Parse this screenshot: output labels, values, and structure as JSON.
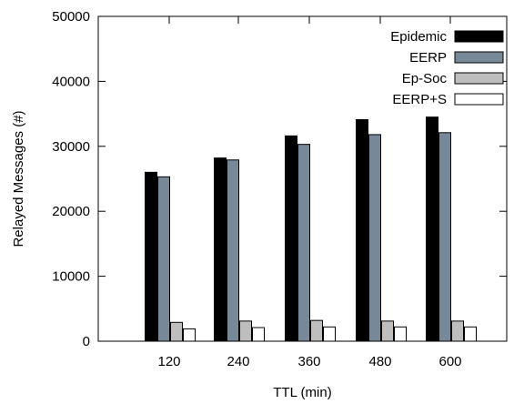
{
  "chart_data": {
    "type": "bar",
    "title": "",
    "xlabel": "TTL (min)",
    "ylabel": "Relayed Messages (#)",
    "categories": [
      "120",
      "240",
      "360",
      "480",
      "600"
    ],
    "ylim": [
      0,
      50000
    ],
    "yticks": [
      0,
      10000,
      20000,
      30000,
      40000,
      50000
    ],
    "grid": false,
    "legend_position": "top-right",
    "series": [
      {
        "name": "Epidemic",
        "color": "#000000",
        "values": [
          26000,
          28200,
          31600,
          34100,
          34500
        ]
      },
      {
        "name": "EERP",
        "color": "#778899",
        "values": [
          25300,
          27900,
          30300,
          31800,
          32100
        ]
      },
      {
        "name": "Ep-Soc",
        "color": "#bebebe",
        "values": [
          2900,
          3100,
          3200,
          3100,
          3100
        ]
      },
      {
        "name": "EERP+S",
        "color": "#ffffff",
        "values": [
          1900,
          2100,
          2200,
          2200,
          2200
        ]
      }
    ]
  }
}
